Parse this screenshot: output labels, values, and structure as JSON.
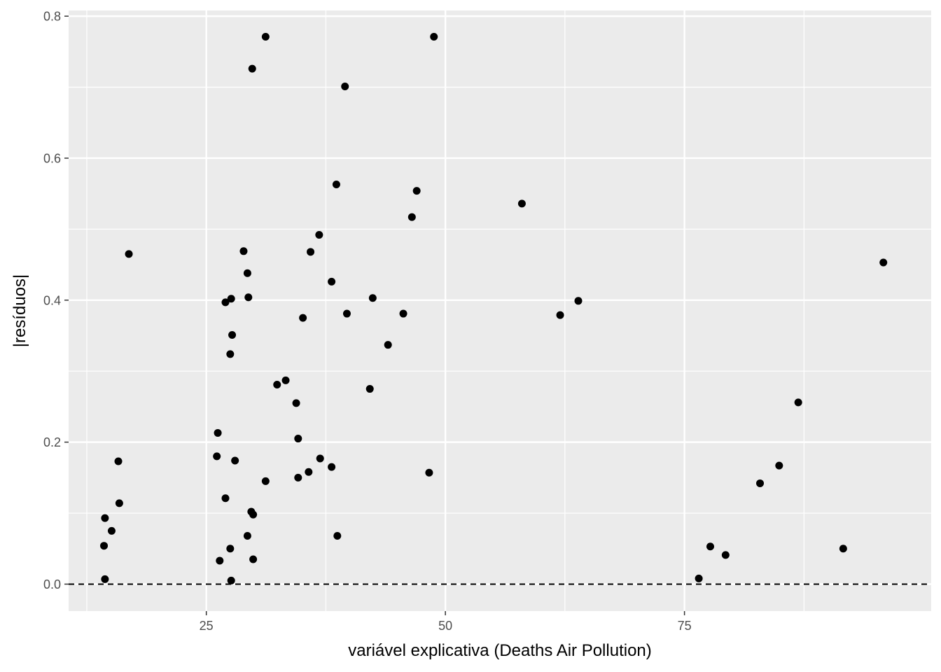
{
  "chart_data": {
    "type": "scatter",
    "title": "",
    "xlabel": "variável explicativa (Deaths Air Pollution)",
    "ylabel": "|resíduos|",
    "xlim": [
      10.6,
      100.8
    ],
    "ylim": [
      -0.038,
      0.808
    ],
    "x_ticks": [
      25,
      50,
      75
    ],
    "x_tick_labels": [
      "25",
      "50",
      "75"
    ],
    "x_minor_ticks": [
      12.5,
      37.5,
      62.5,
      87.5
    ],
    "y_ticks": [
      0.0,
      0.2,
      0.4,
      0.6,
      0.8
    ],
    "y_tick_labels": [
      "0.0",
      "0.2",
      "0.4",
      "0.6",
      "0.8"
    ],
    "y_minor_ticks": [
      0.1,
      0.3,
      0.5,
      0.7
    ],
    "grid": true,
    "reference_line": {
      "y": 0,
      "style": "dashed"
    },
    "colors": {
      "panel": "#ebebeb",
      "grid": "#ffffff",
      "point": "#000000"
    },
    "points": [
      {
        "x": 16.9,
        "y": 0.465
      },
      {
        "x": 15.8,
        "y": 0.173
      },
      {
        "x": 15.9,
        "y": 0.114
      },
      {
        "x": 14.4,
        "y": 0.093
      },
      {
        "x": 15.1,
        "y": 0.075
      },
      {
        "x": 14.3,
        "y": 0.054
      },
      {
        "x": 14.4,
        "y": 0.007
      },
      {
        "x": 31.2,
        "y": 0.771
      },
      {
        "x": 29.8,
        "y": 0.726
      },
      {
        "x": 39.5,
        "y": 0.701
      },
      {
        "x": 48.8,
        "y": 0.771
      },
      {
        "x": 38.6,
        "y": 0.563
      },
      {
        "x": 47.0,
        "y": 0.554
      },
      {
        "x": 46.5,
        "y": 0.517
      },
      {
        "x": 58.0,
        "y": 0.536
      },
      {
        "x": 36.8,
        "y": 0.492
      },
      {
        "x": 28.9,
        "y": 0.469
      },
      {
        "x": 35.9,
        "y": 0.468
      },
      {
        "x": 29.3,
        "y": 0.438
      },
      {
        "x": 38.1,
        "y": 0.426
      },
      {
        "x": 27.6,
        "y": 0.402
      },
      {
        "x": 27.0,
        "y": 0.397
      },
      {
        "x": 29.4,
        "y": 0.404
      },
      {
        "x": 42.4,
        "y": 0.403
      },
      {
        "x": 39.7,
        "y": 0.381
      },
      {
        "x": 45.6,
        "y": 0.381
      },
      {
        "x": 35.1,
        "y": 0.375
      },
      {
        "x": 27.7,
        "y": 0.351
      },
      {
        "x": 44.0,
        "y": 0.337
      },
      {
        "x": 27.5,
        "y": 0.324
      },
      {
        "x": 33.3,
        "y": 0.287
      },
      {
        "x": 32.4,
        "y": 0.281
      },
      {
        "x": 42.1,
        "y": 0.275
      },
      {
        "x": 34.4,
        "y": 0.255
      },
      {
        "x": 26.2,
        "y": 0.213
      },
      {
        "x": 34.6,
        "y": 0.205
      },
      {
        "x": 26.1,
        "y": 0.18
      },
      {
        "x": 36.9,
        "y": 0.177
      },
      {
        "x": 28.0,
        "y": 0.174
      },
      {
        "x": 38.1,
        "y": 0.165
      },
      {
        "x": 35.7,
        "y": 0.158
      },
      {
        "x": 48.3,
        "y": 0.157
      },
      {
        "x": 34.6,
        "y": 0.15
      },
      {
        "x": 31.2,
        "y": 0.145
      },
      {
        "x": 27.0,
        "y": 0.121
      },
      {
        "x": 29.7,
        "y": 0.102
      },
      {
        "x": 29.9,
        "y": 0.098
      },
      {
        "x": 29.3,
        "y": 0.068
      },
      {
        "x": 38.7,
        "y": 0.068
      },
      {
        "x": 27.5,
        "y": 0.05
      },
      {
        "x": 26.4,
        "y": 0.033
      },
      {
        "x": 29.9,
        "y": 0.035
      },
      {
        "x": 27.6,
        "y": 0.005
      },
      {
        "x": 62.0,
        "y": 0.379
      },
      {
        "x": 63.9,
        "y": 0.399
      },
      {
        "x": 95.8,
        "y": 0.453
      },
      {
        "x": 86.9,
        "y": 0.256
      },
      {
        "x": 84.9,
        "y": 0.167
      },
      {
        "x": 82.9,
        "y": 0.142
      },
      {
        "x": 91.6,
        "y": 0.05
      },
      {
        "x": 77.7,
        "y": 0.053
      },
      {
        "x": 79.3,
        "y": 0.041
      },
      {
        "x": 76.5,
        "y": 0.008
      }
    ]
  }
}
